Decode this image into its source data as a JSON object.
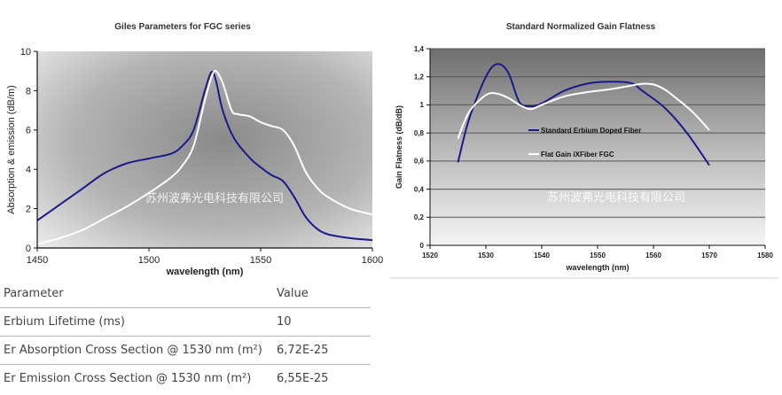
{
  "chart_data": [
    {
      "type": "line",
      "title": "Giles Parameters for FGC series",
      "xlabel": "wavelength (nm)",
      "ylabel": "Absorption & emission (dB/m)",
      "xlim": [
        1450,
        1600
      ],
      "ylim": [
        0,
        10
      ],
      "x_ticks": [
        "1450",
        "1500",
        "1550",
        "1600"
      ],
      "y_ticks": [
        "0",
        "2",
        "4",
        "6",
        "8",
        "10"
      ],
      "watermark": "苏州波弗光电科技有限公司",
      "series": [
        {
          "color": "#1a1a8c",
          "points": [
            [
              1450,
              1.4
            ],
            [
              1460,
              2.2
            ],
            [
              1470,
              3.0
            ],
            [
              1480,
              3.8
            ],
            [
              1490,
              4.3
            ],
            [
              1500,
              4.55
            ],
            [
              1510,
              4.8
            ],
            [
              1515,
              5.2
            ],
            [
              1520,
              6.0
            ],
            [
              1525,
              8.0
            ],
            [
              1528,
              8.95
            ],
            [
              1530,
              8.5
            ],
            [
              1533,
              7.0
            ],
            [
              1538,
              5.6
            ],
            [
              1545,
              4.6
            ],
            [
              1550,
              4.1
            ],
            [
              1555,
              3.7
            ],
            [
              1560,
              3.4
            ],
            [
              1565,
              2.6
            ],
            [
              1570,
              1.6
            ],
            [
              1575,
              1.0
            ],
            [
              1580,
              0.7
            ],
            [
              1590,
              0.5
            ],
            [
              1600,
              0.4
            ]
          ]
        },
        {
          "color": "#ffffff",
          "points": [
            [
              1450,
              0.2
            ],
            [
              1460,
              0.5
            ],
            [
              1470,
              0.9
            ],
            [
              1480,
              1.5
            ],
            [
              1490,
              2.1
            ],
            [
              1500,
              2.8
            ],
            [
              1510,
              3.6
            ],
            [
              1515,
              4.2
            ],
            [
              1520,
              5.2
            ],
            [
              1525,
              7.5
            ],
            [
              1528,
              8.7
            ],
            [
              1530,
              9.0
            ],
            [
              1533,
              8.4
            ],
            [
              1537,
              7.0
            ],
            [
              1540,
              6.8
            ],
            [
              1545,
              6.7
            ],
            [
              1550,
              6.4
            ],
            [
              1555,
              6.2
            ],
            [
              1560,
              6.0
            ],
            [
              1565,
              5.2
            ],
            [
              1570,
              3.9
            ],
            [
              1575,
              3.1
            ],
            [
              1580,
              2.6
            ],
            [
              1590,
              2.0
            ],
            [
              1600,
              1.7
            ]
          ]
        }
      ]
    },
    {
      "type": "line",
      "title": "Standard Normalized Gain Flatness",
      "xlabel": "wavelength (nm)",
      "ylabel": "Gain Flatness (dB/dB)",
      "xlim": [
        1520,
        1580
      ],
      "ylim": [
        0,
        1.4
      ],
      "x_ticks": [
        "1520",
        "1530",
        "1540",
        "1550",
        "1560",
        "1570",
        "1580"
      ],
      "y_ticks": [
        "0",
        "0,2",
        "0,4",
        "0,6",
        "0,8",
        "1",
        "1,2",
        "1,4"
      ],
      "watermark": "苏州波弗光电科技有限公司",
      "series": [
        {
          "name": "Standard Erbium Doped Fiber",
          "color": "#1a1a8c",
          "points": [
            [
              1525,
              0.59
            ],
            [
              1527,
              0.9
            ],
            [
              1530,
              1.2
            ],
            [
              1532,
              1.29
            ],
            [
              1534,
              1.23
            ],
            [
              1536,
              1.02
            ],
            [
              1538,
              0.99
            ],
            [
              1540,
              1.01
            ],
            [
              1544,
              1.1
            ],
            [
              1548,
              1.15
            ],
            [
              1552,
              1.165
            ],
            [
              1556,
              1.155
            ],
            [
              1558,
              1.1
            ],
            [
              1562,
              0.98
            ],
            [
              1566,
              0.8
            ],
            [
              1570,
              0.57
            ]
          ]
        },
        {
          "name": "Flat Gain iXFiber FGC",
          "color": "#ffffff",
          "points": [
            [
              1525,
              0.76
            ],
            [
              1527,
              0.95
            ],
            [
              1530,
              1.07
            ],
            [
              1532,
              1.08
            ],
            [
              1534,
              1.05
            ],
            [
              1536,
              1.0
            ],
            [
              1538,
              0.97
            ],
            [
              1540,
              1.0
            ],
            [
              1544,
              1.06
            ],
            [
              1548,
              1.09
            ],
            [
              1552,
              1.11
            ],
            [
              1555,
              1.13
            ],
            [
              1558,
              1.15
            ],
            [
              1560,
              1.145
            ],
            [
              1562,
              1.11
            ],
            [
              1564,
              1.05
            ],
            [
              1567,
              0.95
            ],
            [
              1570,
              0.82
            ]
          ]
        }
      ]
    }
  ],
  "table": {
    "header": {
      "param": "Parameter",
      "value": "Value"
    },
    "rows": [
      {
        "param": "Erbium Lifetime (ms)",
        "value": "10"
      },
      {
        "param": "Er Absorption Cross Section @ 1530 nm (m²)",
        "value": "6,72E-25"
      },
      {
        "param": "Er Emission Cross Section @ 1530 nm (m²)",
        "value": "6,55E-25"
      }
    ]
  }
}
